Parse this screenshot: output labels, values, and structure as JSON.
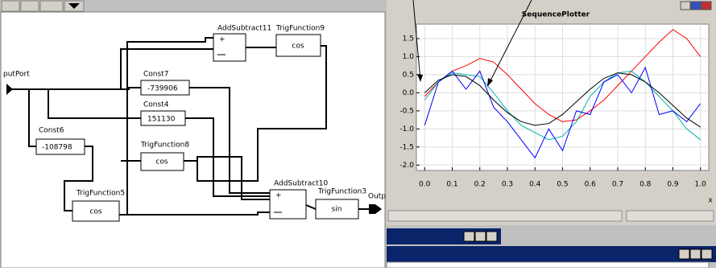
{
  "diagram": {
    "input_port": "putPort",
    "output_port": "Outp",
    "nodes": [
      {
        "name": "Const7",
        "label": "-739906"
      },
      {
        "name": "Const4",
        "label": "151130"
      },
      {
        "name": "Const6",
        "label": "-108798"
      },
      {
        "name": "TrigFunction8",
        "label": "cos"
      },
      {
        "name": "TrigFunction5",
        "label": "cos"
      },
      {
        "name": "AddSubtract11",
        "label": "+"
      },
      {
        "name": "TrigFunction9",
        "label": "cos"
      },
      {
        "name": "AddSubtract10",
        "label": "+"
      },
      {
        "name": "TrigFunction3",
        "label": "sin"
      }
    ]
  },
  "chart_data": {
    "type": "line",
    "title": "SequencePlotter",
    "xlabel": "x",
    "x": [
      0,
      0.05,
      0.1,
      0.15,
      0.2,
      0.25,
      0.3,
      0.35,
      0.4,
      0.45,
      0.5,
      0.55,
      0.6,
      0.65,
      0.7,
      0.75,
      0.8,
      0.85,
      0.9,
      0.95,
      1
    ],
    "series": [
      {
        "color": "#ff0000",
        "values": [
          -0.1,
          0.3,
          0.6,
          0.75,
          0.95,
          0.85,
          0.5,
          0.1,
          -0.3,
          -0.6,
          -0.8,
          -0.75,
          -0.5,
          -0.2,
          0.2,
          0.6,
          1.0,
          1.4,
          1.75,
          1.5,
          1.0
        ]
      },
      {
        "color": "#00b0b0",
        "values": [
          -0.2,
          0.3,
          0.55,
          0.5,
          0.45,
          0.0,
          -0.5,
          -0.9,
          -1.1,
          -1.3,
          -1.2,
          -0.8,
          -0.1,
          0.3,
          0.55,
          0.6,
          0.3,
          -0.1,
          -0.5,
          -1.0,
          -1.3
        ]
      },
      {
        "color": "#0000ff",
        "values": [
          -0.9,
          0.3,
          0.6,
          0.1,
          0.6,
          -0.4,
          -0.8,
          -1.3,
          -1.8,
          -1.0,
          -1.6,
          -0.5,
          -0.6,
          0.3,
          0.5,
          0.0,
          0.7,
          -0.6,
          -0.5,
          -0.8,
          -0.3
        ]
      },
      {
        "color": "#000000",
        "values": [
          0.0,
          0.35,
          0.5,
          0.45,
          0.2,
          -0.2,
          -0.55,
          -0.8,
          -0.9,
          -0.85,
          -0.6,
          -0.25,
          0.1,
          0.4,
          0.55,
          0.5,
          0.3,
          0.0,
          -0.35,
          -0.7,
          -0.95
        ]
      }
    ],
    "xlim": [
      -0.03,
      1.03
    ],
    "ylim": [
      -2.15,
      1.9
    ],
    "xticks": [
      {
        "value": 0,
        "label": "0.0"
      },
      0.1,
      0.2,
      0.3,
      0.4,
      0.5,
      0.6,
      0.7,
      0.8,
      0.9,
      {
        "value": 1,
        "label": "1.0"
      }
    ],
    "yticks": [
      1.5,
      {
        "value": 1,
        "label": "1.0"
      },
      0.5,
      {
        "value": 0,
        "label": "0.0"
      },
      -0.5,
      {
        "value": -1,
        "label": "-1.0"
      },
      -1.5,
      {
        "value": -2,
        "label": "-2.0"
      }
    ],
    "grid": true
  }
}
